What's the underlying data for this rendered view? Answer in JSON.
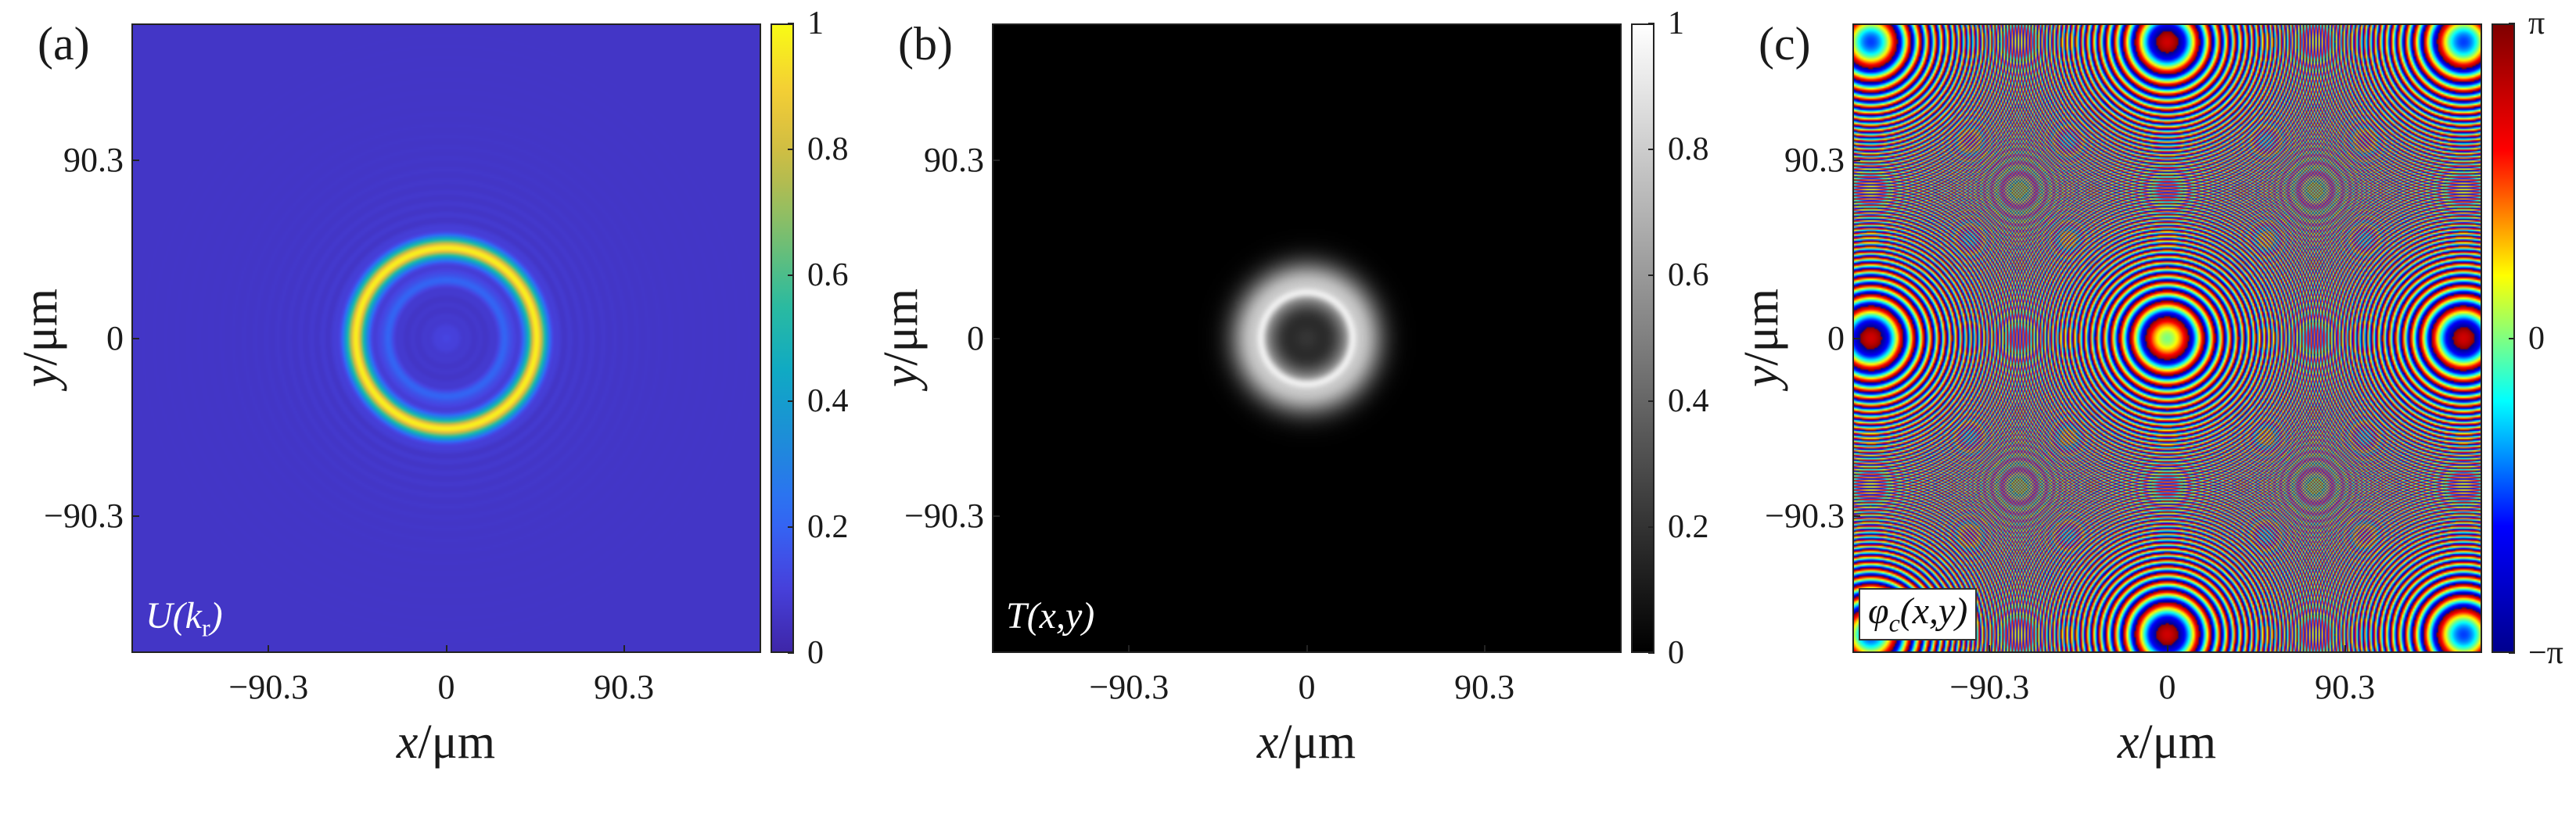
{
  "colors": {
    "parula": [
      "#3e26a8",
      "#4743e0",
      "#2f6cf8",
      "#1e8bd9",
      "#0fa9c5",
      "#2bbb9e",
      "#7bbf6e",
      "#c6bb46",
      "#f3cb37",
      "#f9fb15"
    ],
    "gray": [
      "#000000",
      "#ffffff"
    ],
    "jet": [
      "#00008f",
      "#0000ff",
      "#00ffff",
      "#ffff00",
      "#ff0000",
      "#800000"
    ]
  },
  "chart_data": [
    {
      "type": "heatmap",
      "panel_label": "(a)",
      "inset_label": "U(k",
      "inset_sub": "r",
      "inset_close": ")",
      "xlabel_var": "x",
      "xlabel_unit": "/μm",
      "ylabel_var": "y",
      "ylabel_unit": "/μm",
      "xlim": [
        -160,
        160
      ],
      "ylim": [
        -160,
        160
      ],
      "xticks": [
        "-90.3",
        "0",
        "90.3"
      ],
      "xtick_values": [
        -90.3,
        0,
        90.3
      ],
      "yticks": [
        "90.3",
        "0",
        "-90.3"
      ],
      "ytick_values": [
        90.3,
        0,
        -90.3
      ],
      "colormap": "parula",
      "clim": [
        0,
        1
      ],
      "colorbar_ticks": [
        "1",
        "0.8",
        "0.6",
        "0.4",
        "0.2",
        "0"
      ],
      "colorbar_values": [
        1,
        0.8,
        0.6,
        0.4,
        0.2,
        0
      ],
      "pattern": "Bright ring at radius ~46 μm (value ~0.9), weaker inner ring ~30 μm, background ~0.05 with faint concentric ripples"
    },
    {
      "type": "heatmap",
      "panel_label": "(b)",
      "inset_label": "T(x,y)",
      "xlabel_var": "x",
      "xlabel_unit": "/μm",
      "ylabel_var": "y",
      "ylabel_unit": "/μm",
      "xlim": [
        -160,
        160
      ],
      "ylim": [
        -160,
        160
      ],
      "xticks": [
        "-90.3",
        "0",
        "90.3"
      ],
      "xtick_values": [
        -90.3,
        0,
        90.3
      ],
      "yticks": [
        "90.3",
        "0",
        "-90.3"
      ],
      "ytick_values": [
        90.3,
        0,
        -90.3
      ],
      "colormap": "gray",
      "clim": [
        0,
        1
      ],
      "colorbar_ticks": [
        "1",
        "0.8",
        "0.6",
        "0.4",
        "0.2",
        "0"
      ],
      "colorbar_values": [
        1,
        0.8,
        0.6,
        0.4,
        0.2,
        0
      ],
      "pattern": "Dark center (~0.25) surrounded by bright annulus peaking ~1 at radius ~28 μm, fading to 0 by ~60 μm"
    },
    {
      "type": "heatmap",
      "panel_label": "(c)",
      "inset_label": "φ",
      "inset_sub": "c",
      "inset_close": "(x,y)",
      "xlabel_var": "x",
      "xlabel_unit": "/μm",
      "ylabel_var": "y",
      "ylabel_unit": "/μm",
      "xlim": [
        -160,
        160
      ],
      "ylim": [
        -160,
        160
      ],
      "xticks": [
        "-90.3",
        "0",
        "90.3"
      ],
      "xtick_values": [
        -90.3,
        0,
        90.3
      ],
      "yticks": [
        "90.3",
        "0",
        "-90.3"
      ],
      "ytick_values": [
        90.3,
        0,
        -90.3
      ],
      "colormap": "jet",
      "clim": [
        -3.14159,
        3.14159
      ],
      "colorbar_ticks": [
        "π",
        "0",
        "−π"
      ],
      "colorbar_values": [
        3.14159,
        0,
        -3.14159
      ],
      "pattern": "Wrapped quadratic phase: concentric rings, spacing decreasing with radius"
    }
  ]
}
